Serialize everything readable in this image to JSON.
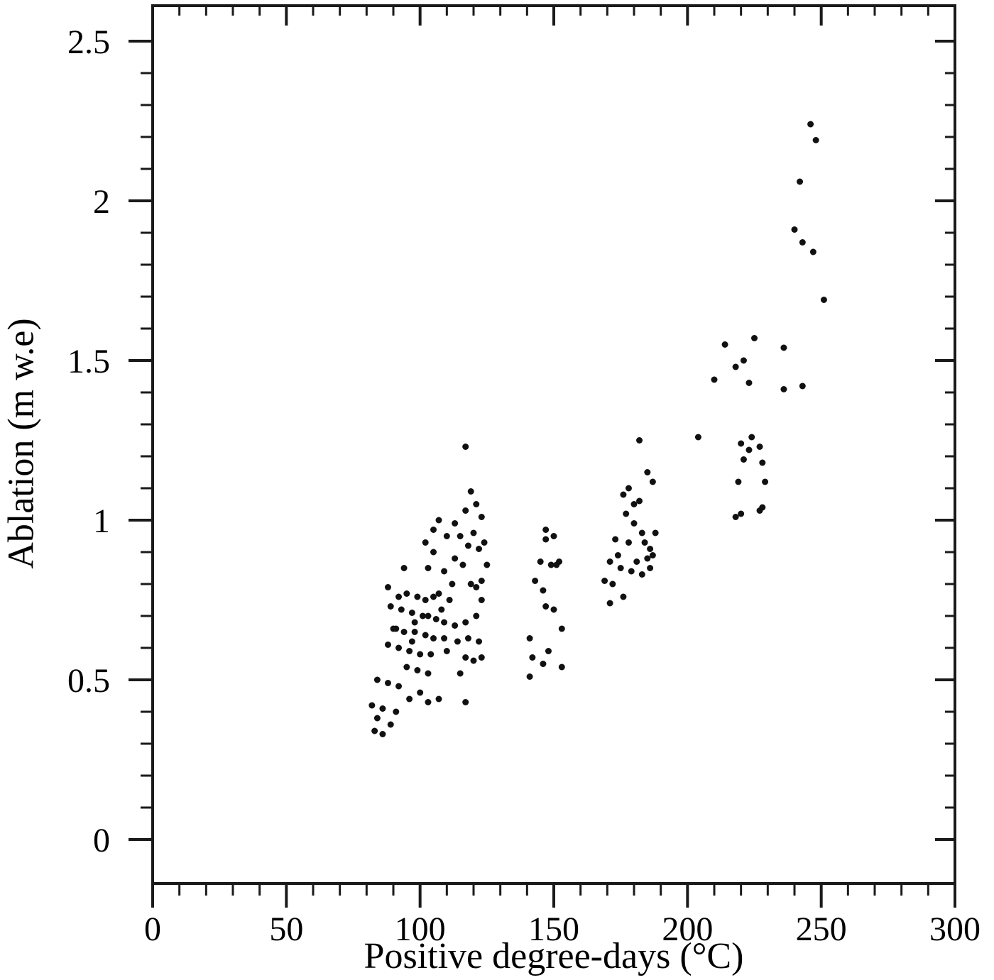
{
  "chart_data": {
    "type": "scatter",
    "title": "",
    "xlabel": "Positive degree-days (°C)",
    "ylabel": "Ablation (m w.e)",
    "xlim": [
      0,
      300
    ],
    "ylim": [
      0,
      2.5
    ],
    "x_ticks": [
      0,
      50,
      100,
      150,
      200,
      250,
      300
    ],
    "x_tick_labels": [
      "0",
      "50",
      "100",
      "150",
      "200",
      "250",
      "300"
    ],
    "y_ticks": [
      0,
      0.5,
      1,
      1.5,
      2,
      2.5
    ],
    "y_tick_labels": [
      "0",
      "0.5",
      "1",
      "1.5",
      "2",
      "2.5"
    ],
    "x_minor_step": 10,
    "y_minor_step": 0.1,
    "grid": false,
    "legend": "none",
    "marker_color": "#111111",
    "frame_color": "#1a1a1a",
    "points": [
      [
        117,
        1.23
      ],
      [
        119,
        1.09
      ],
      [
        121,
        1.05
      ],
      [
        117,
        1.03
      ],
      [
        123,
        1.01
      ],
      [
        107,
        1.0
      ],
      [
        113,
        0.99
      ],
      [
        105,
        0.97
      ],
      [
        115,
        0.95
      ],
      [
        110,
        0.95
      ],
      [
        102,
        0.93
      ],
      [
        118,
        0.92
      ],
      [
        122,
        0.91
      ],
      [
        105,
        0.9
      ],
      [
        113,
        0.88
      ],
      [
        125,
        0.86
      ],
      [
        103,
        0.85
      ],
      [
        109,
        0.84
      ],
      [
        94,
        0.85
      ],
      [
        123,
        0.81
      ],
      [
        119,
        0.8
      ],
      [
        121,
        0.79
      ],
      [
        88,
        0.79
      ],
      [
        92,
        0.76
      ],
      [
        95,
        0.77
      ],
      [
        99,
        0.76
      ],
      [
        102,
        0.75
      ],
      [
        105,
        0.76
      ],
      [
        107,
        0.77
      ],
      [
        111,
        0.75
      ],
      [
        123,
        0.75
      ],
      [
        89,
        0.73
      ],
      [
        93,
        0.72
      ],
      [
        97,
        0.71
      ],
      [
        101,
        0.7
      ],
      [
        103,
        0.7
      ],
      [
        106,
        0.69
      ],
      [
        109,
        0.68
      ],
      [
        113,
        0.67
      ],
      [
        117,
        0.68
      ],
      [
        121,
        0.7
      ],
      [
        90,
        0.66
      ],
      [
        94,
        0.65
      ],
      [
        98,
        0.65
      ],
      [
        102,
        0.64
      ],
      [
        105,
        0.63
      ],
      [
        109,
        0.63
      ],
      [
        114,
        0.62
      ],
      [
        118,
        0.63
      ],
      [
        122,
        0.62
      ],
      [
        88,
        0.61
      ],
      [
        92,
        0.6
      ],
      [
        96,
        0.59
      ],
      [
        100,
        0.58
      ],
      [
        104,
        0.58
      ],
      [
        117,
        0.57
      ],
      [
        120,
        0.56
      ],
      [
        123,
        0.57
      ],
      [
        95,
        0.54
      ],
      [
        99,
        0.53
      ],
      [
        103,
        0.52
      ],
      [
        115,
        0.52
      ],
      [
        84,
        0.5
      ],
      [
        88,
        0.49
      ],
      [
        92,
        0.48
      ],
      [
        100,
        0.46
      ],
      [
        96,
        0.44
      ],
      [
        103,
        0.43
      ],
      [
        107,
        0.44
      ],
      [
        117,
        0.43
      ],
      [
        82,
        0.42
      ],
      [
        86,
        0.41
      ],
      [
        84,
        0.38
      ],
      [
        89,
        0.36
      ],
      [
        86,
        0.33
      ],
      [
        83,
        0.34
      ],
      [
        91,
        0.4
      ],
      [
        98,
        0.68
      ],
      [
        108,
        0.72
      ],
      [
        112,
        0.8
      ],
      [
        116,
        0.86
      ],
      [
        120,
        0.96
      ],
      [
        124,
        0.93
      ],
      [
        110,
        0.59
      ],
      [
        97,
        0.62
      ],
      [
        91,
        0.66
      ],
      [
        147,
        0.97
      ],
      [
        147,
        0.94
      ],
      [
        150,
        0.95
      ],
      [
        145,
        0.87
      ],
      [
        149,
        0.86
      ],
      [
        152,
        0.87
      ],
      [
        143,
        0.81
      ],
      [
        146,
        0.78
      ],
      [
        147,
        0.73
      ],
      [
        150,
        0.72
      ],
      [
        153,
        0.66
      ],
      [
        141,
        0.63
      ],
      [
        142,
        0.57
      ],
      [
        146,
        0.55
      ],
      [
        153,
        0.54
      ],
      [
        141,
        0.51
      ],
      [
        148,
        0.59
      ],
      [
        151,
        0.86
      ],
      [
        182,
        1.25
      ],
      [
        185,
        1.15
      ],
      [
        187,
        1.12
      ],
      [
        178,
        1.1
      ],
      [
        176,
        1.08
      ],
      [
        180,
        1.05
      ],
      [
        182,
        1.06
      ],
      [
        177,
        1.02
      ],
      [
        180,
        0.99
      ],
      [
        183,
        0.96
      ],
      [
        173,
        0.94
      ],
      [
        184,
        0.93
      ],
      [
        186,
        0.91
      ],
      [
        187,
        0.89
      ],
      [
        171,
        0.87
      ],
      [
        175,
        0.85
      ],
      [
        179,
        0.84
      ],
      [
        183,
        0.83
      ],
      [
        186,
        0.85
      ],
      [
        169,
        0.81
      ],
      [
        172,
        0.8
      ],
      [
        176,
        0.76
      ],
      [
        171,
        0.74
      ],
      [
        174,
        0.89
      ],
      [
        181,
        0.87
      ],
      [
        178,
        0.93
      ],
      [
        188,
        0.96
      ],
      [
        185,
        0.88
      ],
      [
        204,
        1.26
      ],
      [
        214,
        1.55
      ],
      [
        225,
        1.57
      ],
      [
        218,
        1.48
      ],
      [
        221,
        1.5
      ],
      [
        210,
        1.44
      ],
      [
        223,
        1.43
      ],
      [
        236,
        1.54
      ],
      [
        236,
        1.41
      ],
      [
        243,
        1.42
      ],
      [
        220,
        1.24
      ],
      [
        223,
        1.22
      ],
      [
        221,
        1.19
      ],
      [
        227,
        1.23
      ],
      [
        228,
        1.18
      ],
      [
        219,
        1.12
      ],
      [
        229,
        1.12
      ],
      [
        218,
        1.01
      ],
      [
        220,
        1.02
      ],
      [
        227,
        1.03
      ],
      [
        228,
        1.04
      ],
      [
        224,
        1.26
      ],
      [
        246,
        2.24
      ],
      [
        248,
        2.19
      ],
      [
        242,
        2.06
      ],
      [
        240,
        1.91
      ],
      [
        243,
        1.87
      ],
      [
        247,
        1.84
      ],
      [
        251,
        1.69
      ]
    ]
  }
}
